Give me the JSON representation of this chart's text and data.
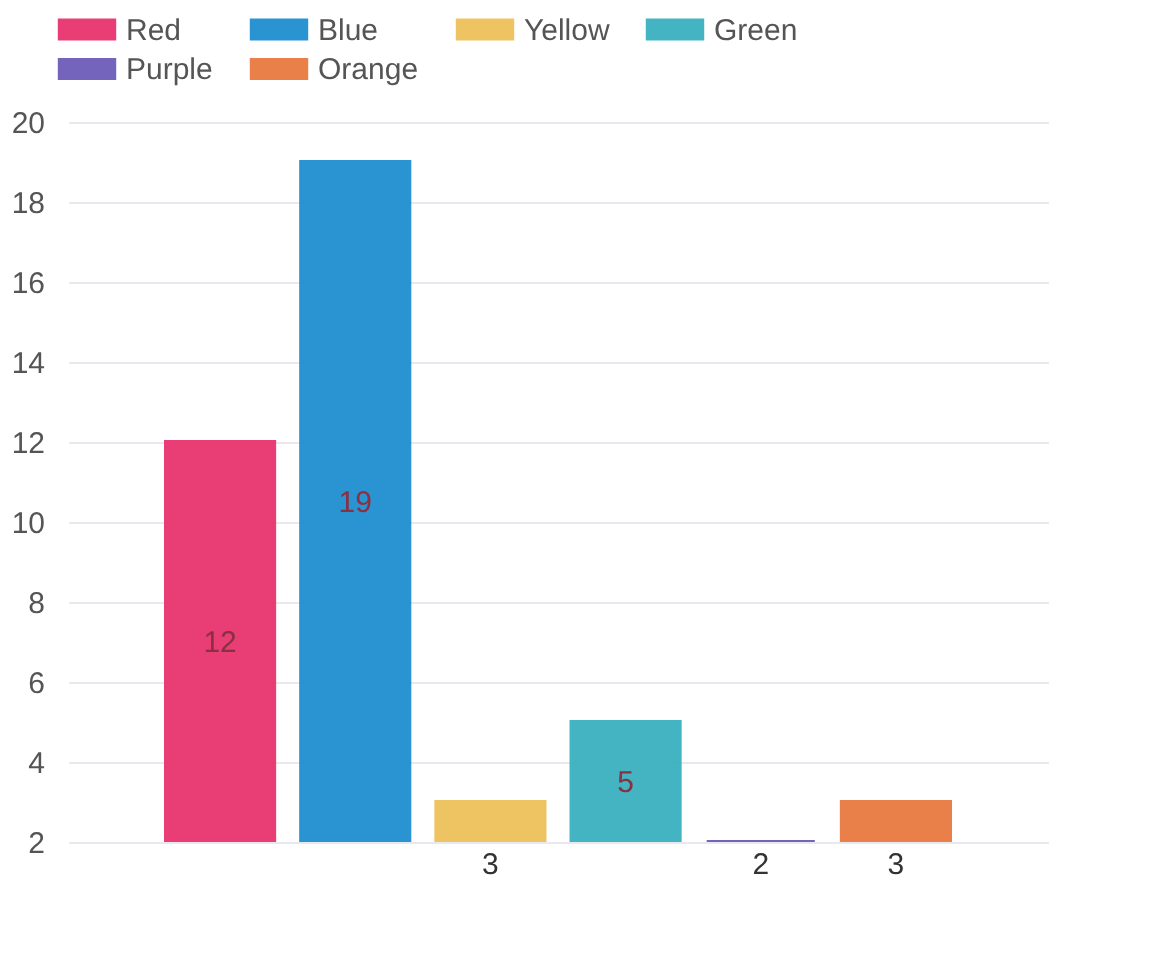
{
  "chart_data": {
    "type": "bar",
    "categories": [
      null
    ],
    "series": [
      {
        "name": "Red",
        "color": "#e8336e",
        "values": [
          12
        ]
      },
      {
        "name": "Blue",
        "color": "#1f8fd0",
        "values": [
          19
        ]
      },
      {
        "name": "Yellow",
        "color": "#eec05a",
        "values": [
          3
        ]
      },
      {
        "name": "Green",
        "color": "#3bb0c0",
        "values": [
          5
        ]
      },
      {
        "name": "Purple",
        "color": "#6e5cb8",
        "values": [
          2
        ]
      },
      {
        "name": "Orange",
        "color": "#e87a40",
        "values": [
          3
        ]
      }
    ],
    "ylim": [
      2,
      20
    ],
    "yticks": [
      2,
      4,
      6,
      8,
      10,
      12,
      14,
      16,
      18,
      20
    ],
    "grid": "y",
    "legend": "top",
    "data_labels": true
  }
}
